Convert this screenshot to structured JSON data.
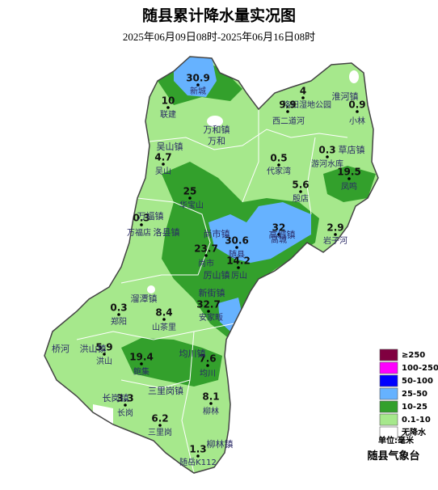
{
  "title": "随县累计降水量实况图",
  "subtitle": "2025年06月09日08时-2025年06月16日08时",
  "stations": [
    {
      "value": 30.9,
      "name": "新城"
    },
    {
      "value": 10,
      "name": "联建"
    },
    {
      "value": 4.7,
      "name": "吴山"
    },
    {
      "value": 4,
      "name": "洛阳湿地公园"
    },
    {
      "value": 9.9,
      "name": "西二道河"
    },
    {
      "value": 0.9,
      "name": "小林"
    },
    {
      "value": 0.5,
      "name": "代家湾"
    },
    {
      "value": 0.3,
      "name": "游河水库"
    },
    {
      "value": 19.5,
      "name": "凤鸣"
    },
    {
      "value": 25,
      "name": "华宝山"
    },
    {
      "value": 5.6,
      "name": "殷店"
    },
    {
      "value": 0.3,
      "name": "万福店"
    },
    {
      "value": 32,
      "name": "高城"
    },
    {
      "value": 2.9,
      "name": "岩子河"
    },
    {
      "value": 30.6,
      "name": "随县"
    },
    {
      "value": 23.7,
      "name": "尚市"
    },
    {
      "value": 14.2,
      "name": "厉山"
    },
    {
      "value": 32.7,
      "name": "安家畈"
    },
    {
      "value": 0.3,
      "name": "郑阳"
    },
    {
      "value": 8.4,
      "name": "山茶里"
    },
    {
      "value": 5.9,
      "name": "洪山"
    },
    {
      "value": 19.4,
      "name": "鲍集"
    },
    {
      "value": 7.6,
      "name": "均川"
    },
    {
      "value": 3.3,
      "name": "长岗"
    },
    {
      "value": 8.1,
      "name": "柳林"
    },
    {
      "value": 6.2,
      "name": "三里岗"
    },
    {
      "value": 1.3,
      "name": "随岳K112"
    }
  ],
  "towns": [
    "万和镇",
    "万和",
    "吴山镇",
    "淮河镇",
    "草店镇",
    "万福镇",
    "洛县镇",
    "高城镇",
    "尚市镇",
    "厉山镇",
    "新街镇",
    "溜潭镇",
    "桥河",
    "洪山镇",
    "均川镇",
    "三里岗镇",
    "长岗镇",
    "柳林镇"
  ],
  "legend": {
    "items": [
      {
        "label": "≥250",
        "color": "#800040"
      },
      {
        "label": "100-250",
        "color": "#ff00ff"
      },
      {
        "label": "50-100",
        "color": "#0000ff"
      },
      {
        "label": "25-50",
        "color": "#66b2ff"
      },
      {
        "label": "10-25",
        "color": "#33a02c"
      },
      {
        "label": "0.1-10",
        "color": "#a6e88c"
      },
      {
        "label": "无降水",
        "color": "#ffffff"
      }
    ],
    "unit": "单位:毫米"
  },
  "agency": "随县气象台"
}
